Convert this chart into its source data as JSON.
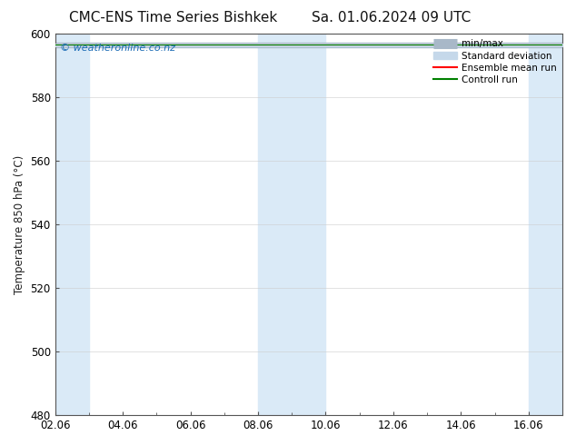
{
  "title": "CMC-ENS Time Series Bishkek",
  "title2": "Sa. 01.06.2024 09 UTC",
  "ylabel": "Temperature 850 hPa (°C)",
  "ylim": [
    480,
    600
  ],
  "yticks": [
    480,
    500,
    520,
    540,
    560,
    580,
    600
  ],
  "xtick_labels": [
    "02.06",
    "04.06",
    "06.06",
    "08.06",
    "10.06",
    "12.06",
    "14.06",
    "16.06"
  ],
  "xtick_positions": [
    0,
    2,
    4,
    6,
    8,
    10,
    12,
    14
  ],
  "x_min": 0,
  "x_max": 15,
  "shaded_bands": [
    {
      "x_start": 0,
      "x_end": 1,
      "color": "#daeaf7"
    },
    {
      "x_start": 6,
      "x_end": 8,
      "color": "#daeaf7"
    },
    {
      "x_start": 14,
      "x_end": 15,
      "color": "#daeaf7"
    }
  ],
  "minmax_color": "#a8b8c8",
  "stddev_color": "#c5d8ea",
  "mean_color": "#ff0000",
  "control_color": "#008000",
  "watermark_text": "© weatheronline.co.nz",
  "watermark_color": "#1a6bb5",
  "background_color": "#ffffff",
  "plot_bg_color": "#ffffff",
  "legend_labels": [
    "min/max",
    "Standard deviation",
    "Ensemble mean run",
    "Controll run"
  ],
  "legend_colors": [
    "#a8b8c8",
    "#c5d8ea",
    "#ff0000",
    "#008000"
  ],
  "y_value": 596.5,
  "title_fontsize": 11,
  "axis_fontsize": 8.5,
  "tick_fontsize": 8.5,
  "legend_fontsize": 7.5
}
